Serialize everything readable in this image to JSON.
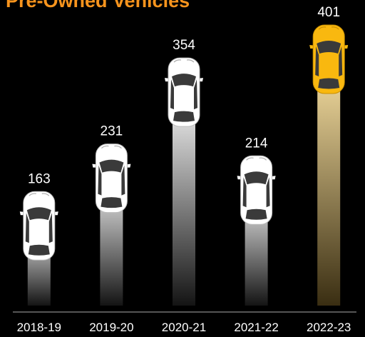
{
  "chart_data": {
    "type": "bar",
    "title": "Pre-Owned Vehicles",
    "categories": [
      "2018-19",
      "2019-20",
      "2020-21",
      "2021-22",
      "2022-23"
    ],
    "values": [
      163,
      231,
      354,
      214,
      401
    ],
    "colors": [
      "#ffffff",
      "#ffffff",
      "#ffffff",
      "#ffffff",
      "#f9b80f"
    ]
  }
}
